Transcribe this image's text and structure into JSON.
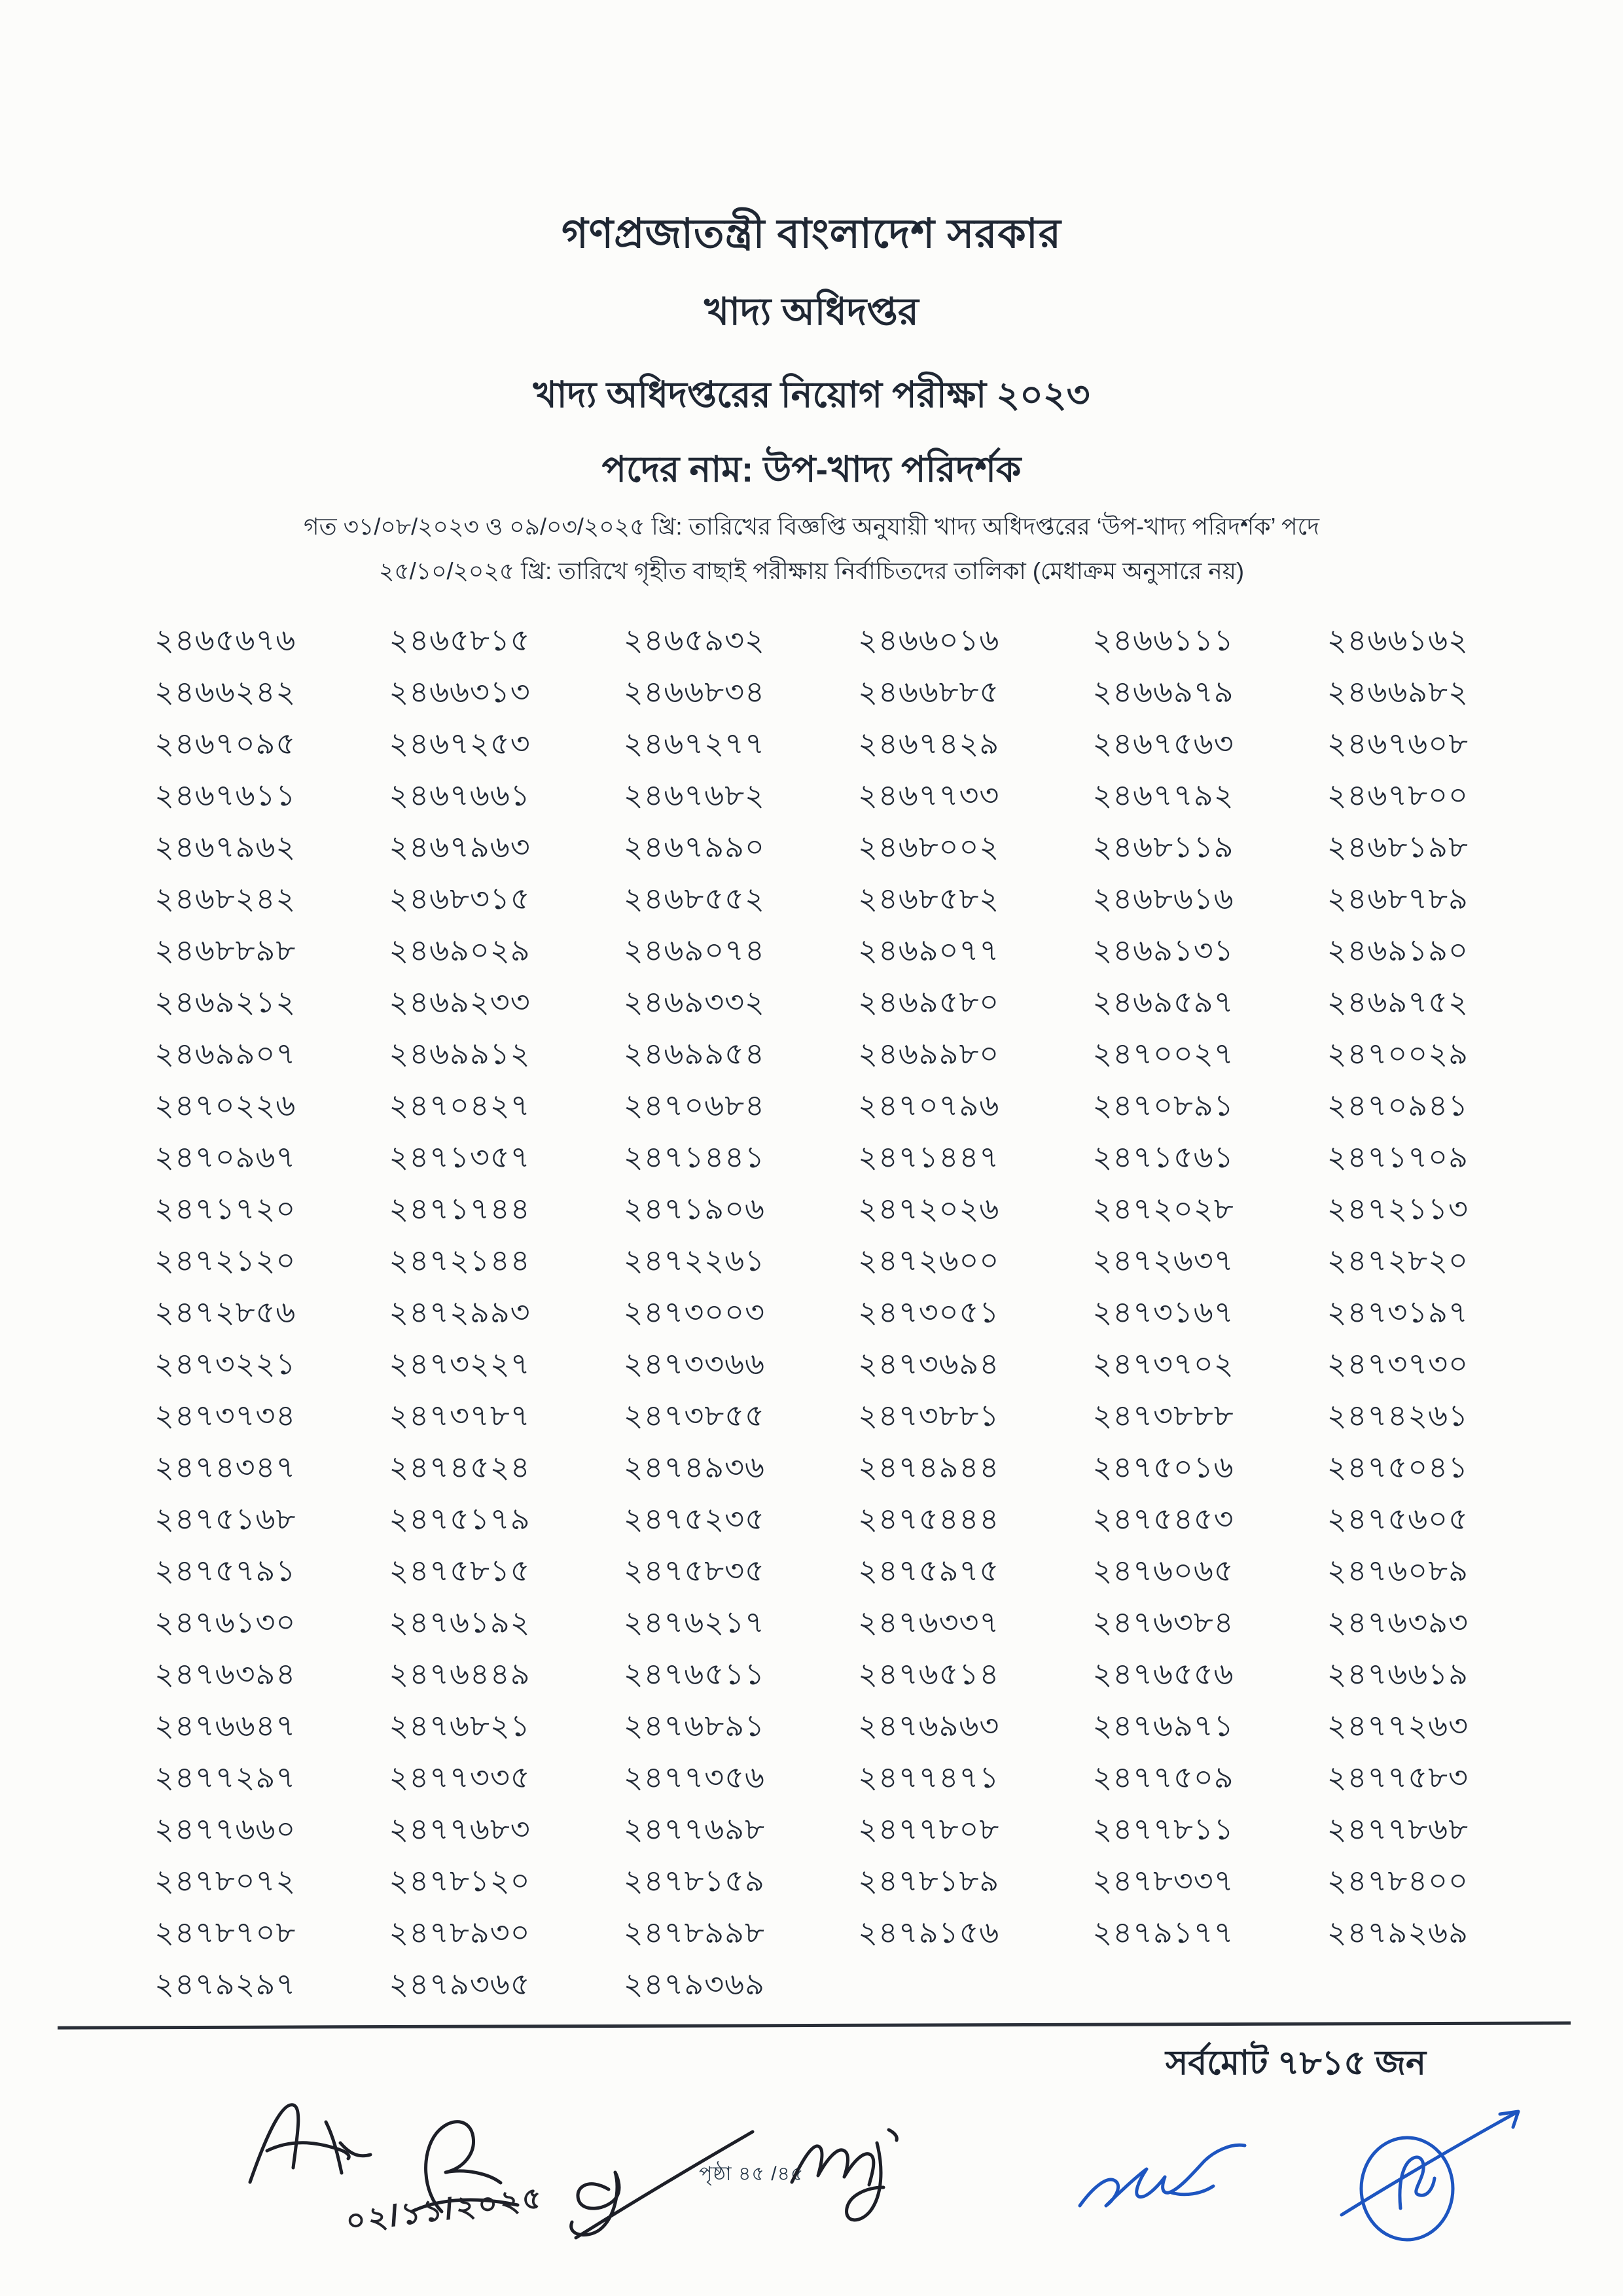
{
  "header": {
    "govt_line": "গণপ্রজাতন্ত্রী বাংলাদেশ সরকার",
    "department": "খাদ্য অধিদপ্তর",
    "exam_title": "খাদ্য অধিদপ্তরের নিয়োগ পরীক্ষা ২০২৩",
    "post_line": "পদের নাম: উপ-খাদ্য পরিদর্শক",
    "note_line1": "গত ৩১/০৮/২০২৩ ও ০৯/০৩/২০২৫ খ্রি: তারিখের বিজ্ঞপ্তি অনুযায়ী খাদ্য অধিদপ্তরের ‘উপ-খাদ্য পরিদর্শক’ পদে",
    "note_line2": "২৫/১০/২০২৫ খ্রি: তারিখে গৃহীত  বাছাই পরীক্ষায় নির্বাচিতদের তালিকা (মেধাক্রম অনুসারে নয়)"
  },
  "roll_table": {
    "columns": 6,
    "rows": [
      [
        "২৪৬৫৬৭৬",
        "২৪৬৫৮১৫",
        "২৪৬৫৯৩২",
        "২৪৬৬০১৬",
        "২৪৬৬১১১",
        "২৪৬৬১৬২"
      ],
      [
        "২৪৬৬২৪২",
        "২৪৬৬৩১৩",
        "২৪৬৬৮৩৪",
        "২৪৬৬৮৮৫",
        "২৪৬৬৯৭৯",
        "২৪৬৬৯৮২"
      ],
      [
        "২৪৬৭০৯৫",
        "২৪৬৭২৫৩",
        "২৪৬৭২৭৭",
        "২৪৬৭৪২৯",
        "২৪৬৭৫৬৩",
        "২৪৬৭৬০৮"
      ],
      [
        "২৪৬৭৬১১",
        "২৪৬৭৬৬১",
        "২৪৬৭৬৮২",
        "২৪৬৭৭৩৩",
        "২৪৬৭৭৯২",
        "২৪৬৭৮০০"
      ],
      [
        "২৪৬৭৯৬২",
        "২৪৬৭৯৬৩",
        "২৪৬৭৯৯০",
        "২৪৬৮০০২",
        "২৪৬৮১১৯",
        "২৪৬৮১৯৮"
      ],
      [
        "২৪৬৮২৪২",
        "২৪৬৮৩১৫",
        "২৪৬৮৫৫২",
        "২৪৬৮৫৮২",
        "২৪৬৮৬১৬",
        "২৪৬৮৭৮৯"
      ],
      [
        "২৪৬৮৮৯৮",
        "২৪৬৯০২৯",
        "২৪৬৯০৭৪",
        "২৪৬৯০৭৭",
        "২৪৬৯১৩১",
        "২৪৬৯১৯০"
      ],
      [
        "২৪৬৯২১২",
        "২৪৬৯২৩৩",
        "২৪৬৯৩৩২",
        "২৪৬৯৫৮০",
        "২৪৬৯৫৯৭",
        "২৪৬৯৭৫২"
      ],
      [
        "২৪৬৯৯০৭",
        "২৪৬৯৯১২",
        "২৪৬৯৯৫৪",
        "২৪৬৯৯৮০",
        "২৪৭০০২৭",
        "২৪৭০০২৯"
      ],
      [
        "২৪৭০২২৬",
        "২৪৭০৪২৭",
        "২৪৭০৬৮৪",
        "২৪৭০৭৯৬",
        "২৪৭০৮৯১",
        "২৪৭০৯৪১"
      ],
      [
        "২৪৭০৯৬৭",
        "২৪৭১৩৫৭",
        "২৪৭১৪৪১",
        "২৪৭১৪৪৭",
        "২৪৭১৫৬১",
        "২৪৭১৭০৯"
      ],
      [
        "২৪৭১৭২০",
        "২৪৭১৭৪৪",
        "২৪৭১৯০৬",
        "২৪৭২০২৬",
        "২৪৭২০২৮",
        "২৪৭২১১৩"
      ],
      [
        "২৪৭২১২০",
        "২৪৭২১৪৪",
        "২৪৭২২৬১",
        "২৪৭২৬০০",
        "২৪৭২৬৩৭",
        "২৪৭২৮২০"
      ],
      [
        "২৪৭২৮৫৬",
        "২৪৭২৯৯৩",
        "২৪৭৩০০৩",
        "২৪৭৩০৫১",
        "২৪৭৩১৬৭",
        "২৪৭৩১৯৭"
      ],
      [
        "২৪৭৩২২১",
        "২৪৭৩২২৭",
        "২৪৭৩৩৬৬",
        "২৪৭৩৬৯৪",
        "২৪৭৩৭০২",
        "২৪৭৩৭৩০"
      ],
      [
        "২৪৭৩৭৩৪",
        "২৪৭৩৭৮৭",
        "২৪৭৩৮৫৫",
        "২৪৭৩৮৮১",
        "২৪৭৩৮৮৮",
        "২৪৭৪২৬১"
      ],
      [
        "২৪৭৪৩৪৭",
        "২৪৭৪৫২৪",
        "২৪৭৪৯৩৬",
        "২৪৭৪৯৪৪",
        "২৪৭৫০১৬",
        "২৪৭৫০৪১"
      ],
      [
        "২৪৭৫১৬৮",
        "২৪৭৫১৭৯",
        "২৪৭৫২৩৫",
        "২৪৭৫৪৪৪",
        "২৪৭৫৪৫৩",
        "২৪৭৫৬০৫"
      ],
      [
        "২৪৭৫৭৯১",
        "২৪৭৫৮১৫",
        "২৪৭৫৮৩৫",
        "২৪৭৫৯৭৫",
        "২৪৭৬০৬৫",
        "২৪৭৬০৮৯"
      ],
      [
        "২৪৭৬১৩০",
        "২৪৭৬১৯২",
        "২৪৭৬২১৭",
        "২৪৭৬৩৩৭",
        "২৪৭৬৩৮৪",
        "২৪৭৬৩৯৩"
      ],
      [
        "২৪৭৬৩৯৪",
        "২৪৭৬৪৪৯",
        "২৪৭৬৫১১",
        "২৪৭৬৫১৪",
        "২৪৭৬৫৫৬",
        "২৪৭৬৬১৯"
      ],
      [
        "২৪৭৬৬৪৭",
        "২৪৭৬৮২১",
        "২৪৭৬৮৯১",
        "২৪৭৬৯৬৩",
        "২৪৭৬৯৭১",
        "২৪৭৭২৬৩"
      ],
      [
        "২৪৭৭২৯৭",
        "২৪৭৭৩৩৫",
        "২৪৭৭৩৫৬",
        "২৪৭৭৪৭১",
        "২৪৭৭৫০৯",
        "২৪৭৭৫৮৩"
      ],
      [
        "২৪৭৭৬৬০",
        "২৪৭৭৬৮৩",
        "২৪৭৭৬৯৮",
        "২৪৭৭৮০৮",
        "২৪৭৭৮১১",
        "২৪৭৭৮৬৮"
      ],
      [
        "২৪৭৮০৭২",
        "২৪৭৮১২০",
        "২৪৭৮১৫৯",
        "২৪৭৮১৮৯",
        "২৪৭৮৩৩৭",
        "২৪৭৮৪০০"
      ],
      [
        "২৪৭৮৭০৮",
        "২৪৭৮৯৩০",
        "২৪৭৮৯৯৮",
        "২৪৭৯১৫৬",
        "২৪৭৯১৭৭",
        "২৪৭৯২৬৯"
      ],
      [
        "২৪৭৯২৯৭",
        "২৪৭৯৩৬৫",
        "২৪৭৯৩৬৯"
      ]
    ]
  },
  "footer": {
    "total_label": "সর্বমোট ৭৮১৫ জন",
    "page_label": "পৃষ্ঠা ৪৫  /৪৫",
    "handwritten_date": "০২/১১/২০২৫"
  },
  "colors": {
    "printed_ink": "#1f2733",
    "black_pen": "#1d1f27",
    "blue_pen": "#1d55c0",
    "paper": "#fcfcfa"
  }
}
